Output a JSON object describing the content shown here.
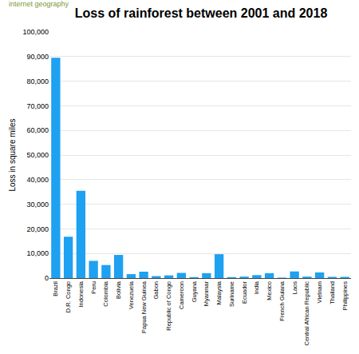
{
  "chart_data": {
    "type": "bar",
    "title": "Loss of rainforest between 2001 and 2018",
    "y_label": "Loss in square miles",
    "annotations": [
      "internet geography"
    ],
    "categories": [
      "Brazil",
      "D.R. Congo",
      "Indonesia",
      "Peru",
      "Colombia",
      "Bolivia",
      "Venezuela",
      "Papua New Guinea",
      "Gabon",
      "Republic of Congo",
      "Cameroon",
      "Guyana",
      "Myanmar",
      "Malaysia",
      "Suriname",
      "Ecuador",
      "India",
      "Mexico",
      "French Guiana",
      "Laos",
      "Central African Republic",
      "Vietnam",
      "Thailand",
      "Philippines"
    ],
    "values": [
      89500,
      16800,
      35500,
      7000,
      5300,
      9400,
      1600,
      2600,
      800,
      1100,
      2100,
      400,
      2000,
      9700,
      400,
      600,
      1200,
      2000,
      200,
      2700,
      600,
      2300,
      500,
      500
    ],
    "color": "#1ea1f1",
    "ylim": [
      0,
      100000
    ],
    "yticks": [
      0,
      {
        "value": 10000,
        "label": "10,000"
      },
      {
        "value": 20000,
        "label": "20,000"
      },
      {
        "value": 30000,
        "label": "30,000"
      },
      {
        "value": 40000,
        "label": "40,000"
      },
      {
        "value": 50000,
        "label": "50,000"
      },
      {
        "value": 60000,
        "label": "60,000"
      },
      {
        "value": 70000,
        "label": "70,000"
      },
      {
        "value": 80000,
        "label": "80,000"
      },
      {
        "value": 90000,
        "label": "90,000"
      },
      {
        "value": 100000,
        "label": "100,000"
      }
    ],
    "grid": true
  }
}
